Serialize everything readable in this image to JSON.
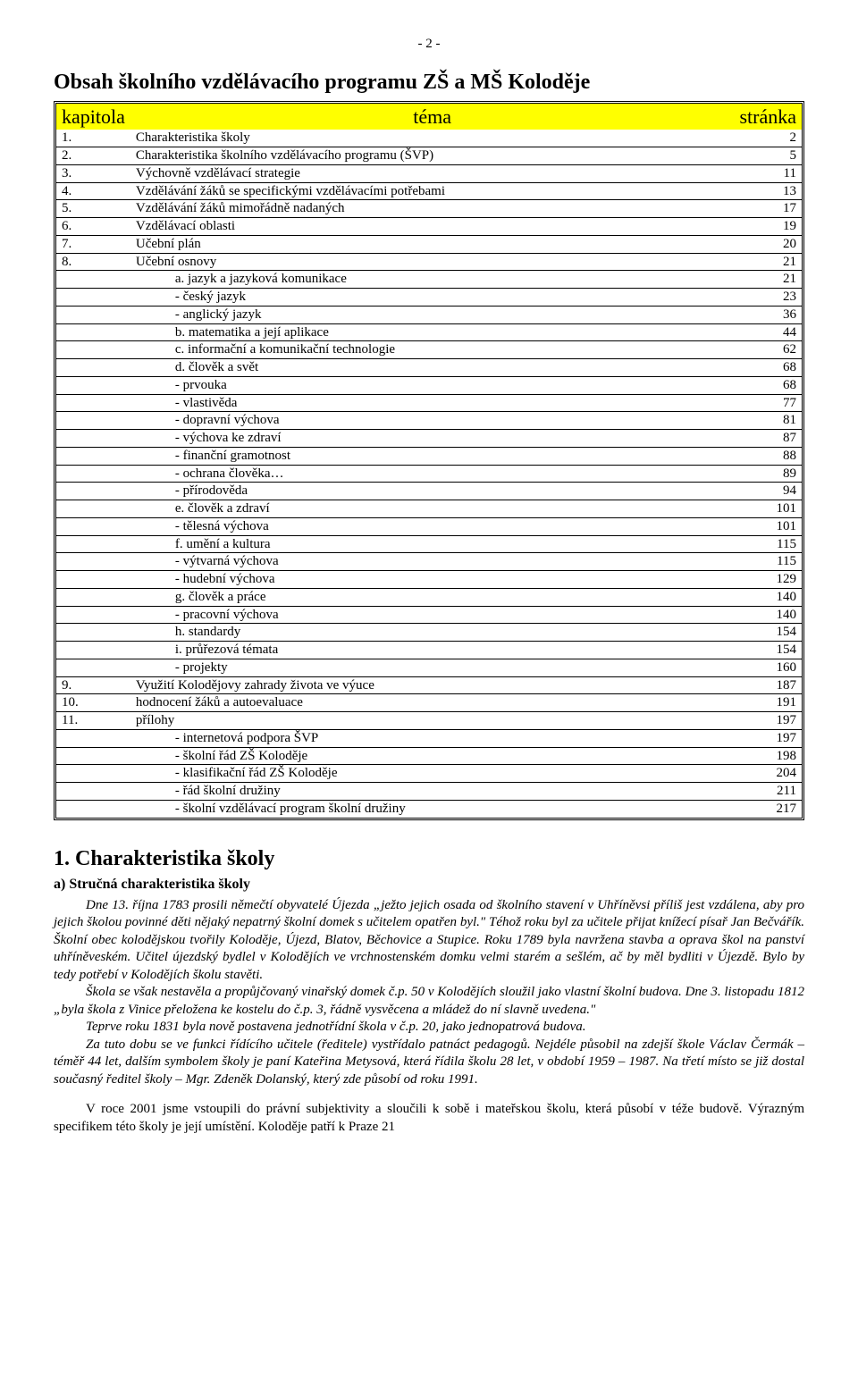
{
  "page_number": "- 2 -",
  "main_title": "Obsah školního vzdělávacího programu ZŠ a MŠ Koloděje",
  "toc_header": {
    "c1": "kapitola",
    "c2": "téma",
    "c3": "stránka"
  },
  "toc": [
    {
      "n": "1.",
      "t": "Charakteristika školy",
      "p": "2",
      "lvl": 0
    },
    {
      "n": "2.",
      "t": "Charakteristika školního vzdělávacího programu (ŠVP)",
      "p": "5",
      "lvl": 0
    },
    {
      "n": "3.",
      "t": "Výchovně vzdělávací strategie",
      "p": "11",
      "lvl": 0
    },
    {
      "n": "4.",
      "t": "Vzdělávání žáků se specifickými vzdělávacími potřebami",
      "p": "13",
      "lvl": 0
    },
    {
      "n": "5.",
      "t": "Vzdělávání žáků mimořádně nadaných",
      "p": "17",
      "lvl": 0
    },
    {
      "n": "6.",
      "t": "Vzdělávací oblasti",
      "p": "19",
      "lvl": 0
    },
    {
      "n": "7.",
      "t": "Učební plán",
      "p": "20",
      "lvl": 0
    },
    {
      "n": "8.",
      "t": "Učební osnovy",
      "p": "21",
      "lvl": 0
    },
    {
      "n": "",
      "t": "a. jazyk a jazyková komunikace",
      "p": "21",
      "lvl": 1
    },
    {
      "n": "",
      "t": "-   český jazyk",
      "p": "23",
      "lvl": 2
    },
    {
      "n": "",
      "t": "-   anglický jazyk",
      "p": "36",
      "lvl": 2
    },
    {
      "n": "",
      "t": "b. matematika a její aplikace",
      "p": "44",
      "lvl": 1
    },
    {
      "n": "",
      "t": "c. informační a komunikační technologie",
      "p": "62",
      "lvl": 1
    },
    {
      "n": "",
      "t": "d. člověk a svět",
      "p": "68",
      "lvl": 1
    },
    {
      "n": "",
      "t": "-   prvouka",
      "p": "68",
      "lvl": 2
    },
    {
      "n": "",
      "t": "-   vlastivěda",
      "p": "77",
      "lvl": 2
    },
    {
      "n": "",
      "t": "-   dopravní výchova",
      "p": "81",
      "lvl": 2
    },
    {
      "n": "",
      "t": "-   výchova ke zdraví",
      "p": "87",
      "lvl": 2
    },
    {
      "n": "",
      "t": "-   finanční gramotnost",
      "p": "88",
      "lvl": 2
    },
    {
      "n": "",
      "t": "-   ochrana člověka…",
      "p": "89",
      "lvl": 2
    },
    {
      "n": "",
      "t": "-   přírodověda",
      "p": "94",
      "lvl": 2
    },
    {
      "n": "",
      "t": "e. člověk a zdraví",
      "p": "101",
      "lvl": 1
    },
    {
      "n": "",
      "t": "-   tělesná výchova",
      "p": "101",
      "lvl": 2
    },
    {
      "n": "",
      "t": "f. umění a kultura",
      "p": "115",
      "lvl": 1
    },
    {
      "n": "",
      "t": "-   výtvarná výchova",
      "p": "115",
      "lvl": 2
    },
    {
      "n": "",
      "t": "-   hudební výchova",
      "p": "129",
      "lvl": 2
    },
    {
      "n": "",
      "t": "g. člověk a práce",
      "p": "140",
      "lvl": 1
    },
    {
      "n": "",
      "t": "-   pracovní výchova",
      "p": "140",
      "lvl": 2
    },
    {
      "n": "",
      "t": "h. standardy",
      "p": "154",
      "lvl": 1
    },
    {
      "n": "",
      "t": "i. průřezová témata",
      "p": "154",
      "lvl": 1
    },
    {
      "n": "",
      "t": "-   projekty",
      "p": "160",
      "lvl": 2
    },
    {
      "n": "9.",
      "t": "Využití Kolodějovy zahrady života ve výuce",
      "p": "187",
      "lvl": 0
    },
    {
      "n": "10.",
      "t": "hodnocení žáků a autoevaluace",
      "p": "191",
      "lvl": 0
    },
    {
      "n": "11.",
      "t": "přílohy",
      "p": "197",
      "lvl": 0
    },
    {
      "n": "",
      "t": "-   internetová podpora ŠVP",
      "p": "197",
      "lvl": 2
    },
    {
      "n": "",
      "t": "-   školní řád ZŠ Koloděje",
      "p": "198",
      "lvl": 2
    },
    {
      "n": "",
      "t": "-   klasifikační řád ZŠ Koloděje",
      "p": "204",
      "lvl": 2
    },
    {
      "n": "",
      "t": "-   řád školní družiny",
      "p": "211",
      "lvl": 2
    },
    {
      "n": "",
      "t": "-   školní vzdělávací program školní družiny",
      "p": "217",
      "lvl": 2
    }
  ],
  "section_title": "1. Charakteristika školy",
  "subsection_title": "a) Stručná charakteristika školy",
  "para1": "Dne 13. října 1783 prosili němečtí obyvatelé Újezda „ježto jejich osada od školního stavení v Uhříněvsi příliš jest vzdálena, aby pro jejich školou povinné děti nějaký nepatrný školní domek s učitelem opatřen byl.\" Téhož roku byl za učitele přijat knížecí písař Jan Bečvářík. Školní obec kolodějskou tvořily Koloděje, Újezd, Blatov, Běchovice a Stupice. Roku 1789 byla navržena stavba a oprava škol na panství uhříněveském. Učitel újezdský bydlel v Kolodějích ve vrchnostenském domku velmi starém a sešlém, ač by měl bydliti v Újezdě. Bylo by tedy potřebí v Kolodějích školu stavěti.",
  "para2": "Škola se však nestavěla a propůjčovaný vinařský domek č.p. 50 v Kolodějích sloužil jako vlastní školní budova. Dne 3. listopadu 1812 „byla škola z Vinice přeložena ke kostelu do č.p. 3, řádně vysvěcena a mládež do ní slavně uvedena.\"",
  "para3": "Teprve roku 1831 byla nově postavena jednotřídní škola v č.p. 20, jako jednopatrová budova.",
  "para4": "Za tuto dobu se ve funkci řídícího učitele (ředitele) vystřídalo patnáct pedagogů. Nejdéle působil na zdejší škole Václav Čermák – téměř 44 let, dalším symbolem školy je paní Kateřina Metysová, která řídila školu 28 let, v období 1959 – 1987. Na třetí místo se již dostal současný ředitel školy – Mgr. Zdeněk Dolanský, který zde působí od roku 1991.",
  "para5": "V roce 2001 jsme vstoupili do právní subjektivity a sloučili k sobě i mateřskou školu, která působí v téže budově. Výrazným specifikem této školy je její umístění. Koloděje patří k Praze 21"
}
